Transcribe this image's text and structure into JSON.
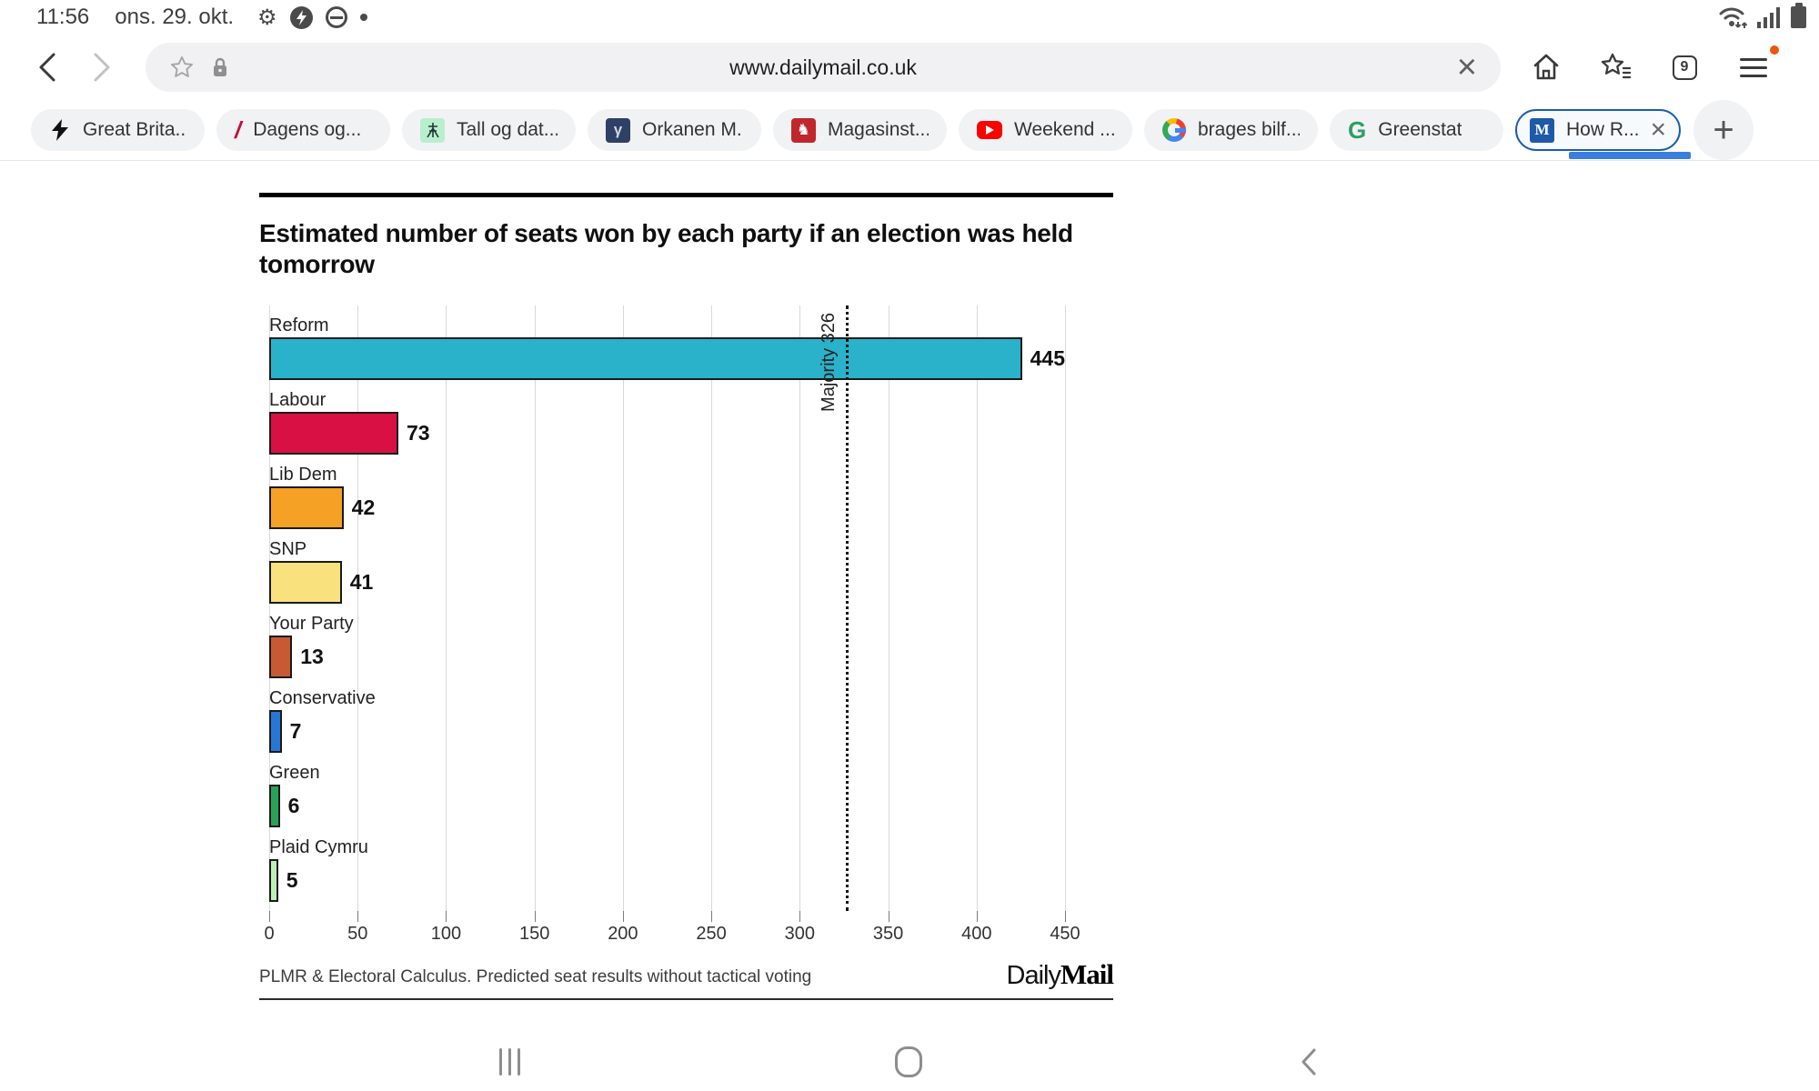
{
  "status_bar": {
    "time": "11:56",
    "date": "ons. 29. okt."
  },
  "toolbar": {
    "url": "www.dailymail.co.uk",
    "tab_count": "9"
  },
  "tab_strip": {
    "tabs": [
      {
        "label": "Great Brita..."
      },
      {
        "label": "Dagens og..."
      },
      {
        "label": "Tall og dat..."
      },
      {
        "label": "Orkanen M..."
      },
      {
        "label": "Magasinst..."
      },
      {
        "label": "Weekend ..."
      },
      {
        "label": "brages bilf..."
      },
      {
        "label": "Greenstat"
      },
      {
        "label": "How R..."
      }
    ],
    "active_favicon_letter": "M",
    "navy_favicon_letter": "γ",
    "magasin_favicon_glyph": "♞",
    "greenstat_letter": "G",
    "slash_glyph": "/",
    "new_tab_glyph": "+"
  },
  "chart_data": {
    "type": "bar",
    "orientation": "horizontal",
    "title_line1": "Estimated number of seats won by each party if an election was held",
    "title_line2": "tomorrow",
    "categories": [
      "Reform",
      "Labour",
      "Lib Dem",
      "SNP",
      "Your Party",
      "Conservative",
      "Green",
      "Plaid Cymru"
    ],
    "values": [
      445,
      73,
      42,
      41,
      13,
      7,
      6,
      5
    ],
    "colors": [
      "#29b2c9",
      "#d81043",
      "#f4a125",
      "#f9e27e",
      "#c75a35",
      "#2777d3",
      "#2aa157",
      "#bdf0b5"
    ],
    "xlim": [
      0,
      450
    ],
    "x_ticks": [
      0,
      50,
      100,
      150,
      200,
      250,
      300,
      350,
      400,
      450
    ],
    "grid": true,
    "reference_line": {
      "value": 326,
      "label": "Majority 326"
    },
    "source": "PLMR & Electoral Calculus. Predicted seat results without tactical voting",
    "logo": {
      "daily": "Daily",
      "mail": "Mail"
    }
  },
  "glyphs": {
    "gear": "⚙",
    "close": "×",
    "tab_count_badge": "9"
  }
}
